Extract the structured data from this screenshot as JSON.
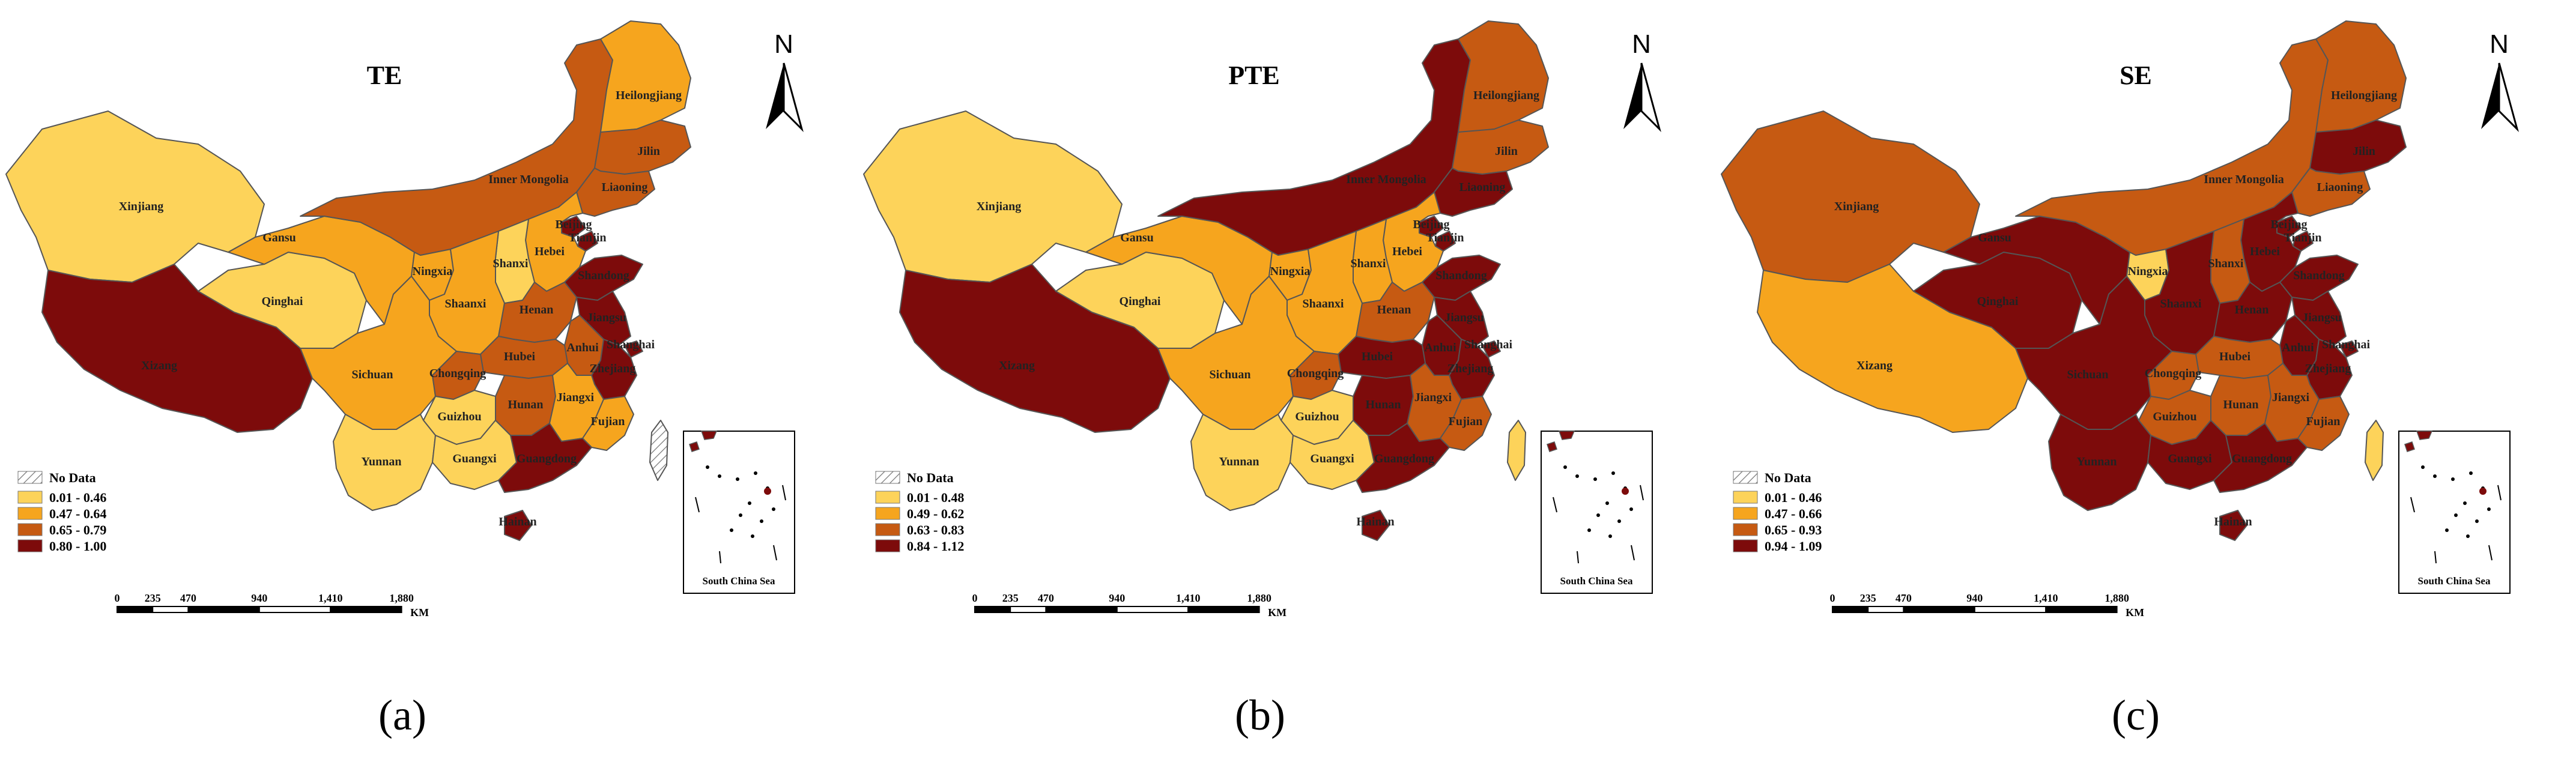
{
  "colors": {
    "class1": "#fdd35a",
    "class2": "#f6a51e",
    "class3": "#c65a12",
    "class4": "#7d0b0b",
    "border": "#555555",
    "nodata": "hatched"
  },
  "panels": [
    {
      "title": "TE",
      "caption": "(a)",
      "legend": {
        "nodata": "No Data",
        "classes": [
          "0.01 - 0.46",
          "0.47 - 0.64",
          "0.65 - 0.79",
          "0.80 - 1.00"
        ]
      },
      "classes": {
        "Xinjiang": 1,
        "Xizang": 4,
        "Qinghai": 1,
        "Gansu": 2,
        "Ningxia": 2,
        "Inner Mongolia": 3,
        "Heilongjiang": 2,
        "Jilin": 3,
        "Liaoning": 3,
        "Beijing": 4,
        "Tianjin": 4,
        "Hebei": 2,
        "Shanxi": 1,
        "Shaanxi": 2,
        "Shandong": 4,
        "Henan": 3,
        "Jiangsu": 4,
        "Shanghai": 4,
        "Anhui": 3,
        "Zhejiang": 4,
        "Hubei": 3,
        "Sichuan": 2,
        "Chongqing": 3,
        "Hunan": 3,
        "Jiangxi": 2,
        "Fujian": 2,
        "Guizhou": 1,
        "Yunnan": 1,
        "Guangxi": 1,
        "Guangdong": 4,
        "Hainan": 4,
        "Taiwan": 0
      }
    },
    {
      "title": "PTE",
      "caption": "(b)",
      "legend": {
        "nodata": "No Data",
        "classes": [
          "0.01 - 0.48",
          "0.49 - 0.62",
          "0.63 - 0.83",
          "0.84 - 1.12"
        ]
      },
      "classes": {
        "Xinjiang": 1,
        "Xizang": 4,
        "Qinghai": 1,
        "Gansu": 2,
        "Ningxia": 2,
        "Inner Mongolia": 4,
        "Heilongjiang": 3,
        "Jilin": 3,
        "Liaoning": 4,
        "Beijing": 4,
        "Tianjin": 4,
        "Hebei": 2,
        "Shanxi": 2,
        "Shaanxi": 2,
        "Shandong": 4,
        "Henan": 3,
        "Jiangsu": 4,
        "Shanghai": 4,
        "Anhui": 4,
        "Zhejiang": 4,
        "Hubei": 4,
        "Sichuan": 2,
        "Chongqing": 3,
        "Hunan": 4,
        "Jiangxi": 3,
        "Fujian": 3,
        "Guizhou": 1,
        "Yunnan": 1,
        "Guangxi": 1,
        "Guangdong": 4,
        "Hainan": 4,
        "Taiwan": 1
      }
    },
    {
      "title": "SE",
      "caption": "(c)",
      "legend": {
        "nodata": "No Data",
        "classes": [
          "0.01 - 0.46",
          "0.47 - 0.66",
          "0.65 - 0.93",
          "0.94 - 1.09"
        ]
      },
      "classes": {
        "Xinjiang": 3,
        "Xizang": 2,
        "Qinghai": 4,
        "Gansu": 4,
        "Ningxia": 1,
        "Inner Mongolia": 3,
        "Heilongjiang": 3,
        "Jilin": 4,
        "Liaoning": 3,
        "Beijing": 4,
        "Tianjin": 4,
        "Hebei": 4,
        "Shanxi": 3,
        "Shaanxi": 4,
        "Shandong": 4,
        "Henan": 4,
        "Jiangsu": 4,
        "Shanghai": 4,
        "Anhui": 4,
        "Zhejiang": 4,
        "Hubei": 3,
        "Sichuan": 4,
        "Chongqing": 3,
        "Hunan": 3,
        "Jiangxi": 3,
        "Fujian": 3,
        "Guizhou": 3,
        "Yunnan": 4,
        "Guangxi": 4,
        "Guangdong": 4,
        "Hainan": 4,
        "Taiwan": 1
      }
    }
  ],
  "provinces": [
    "Xinjiang",
    "Xizang",
    "Qinghai",
    "Gansu",
    "Ningxia",
    "Inner Mongolia",
    "Heilongjiang",
    "Jilin",
    "Liaoning",
    "Beijing",
    "Tianjin",
    "Hebei",
    "Shanxi",
    "Shaanxi",
    "Shandong",
    "Henan",
    "Jiangsu",
    "Shanghai",
    "Anhui",
    "Zhejiang",
    "Hubei",
    "Sichuan",
    "Chongqing",
    "Hunan",
    "Jiangxi",
    "Fujian",
    "Guizhou",
    "Yunnan",
    "Guangxi",
    "Guangdong",
    "Hainan",
    "Taiwan"
  ],
  "scale_bar": {
    "ticks": [
      "0",
      "235",
      "470",
      "940",
      "1,410",
      "1,880"
    ],
    "unit": "KM"
  },
  "north_arrow": "N",
  "inset_label": "South China Sea"
}
